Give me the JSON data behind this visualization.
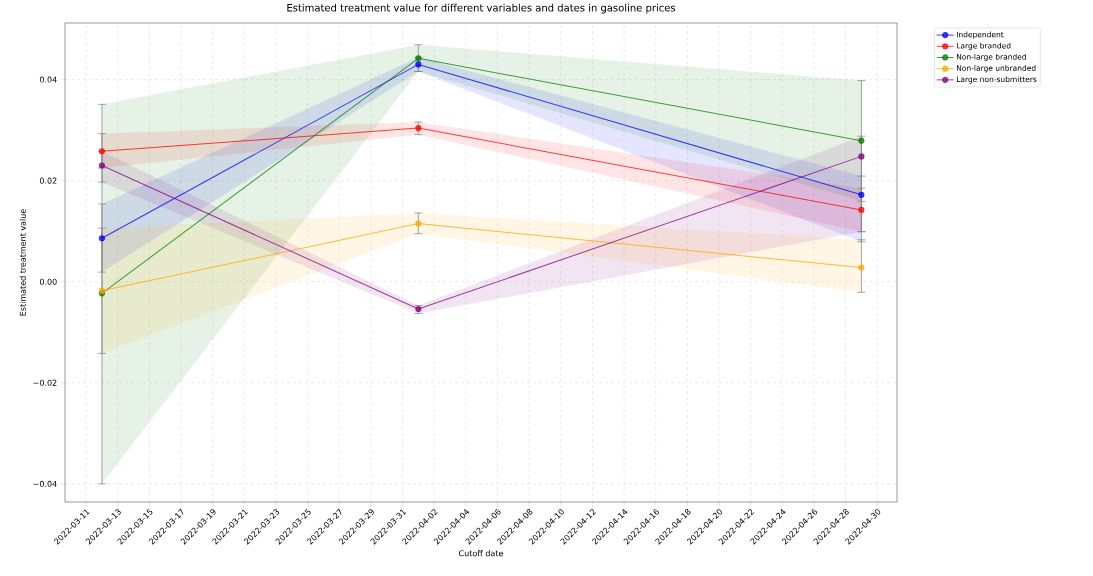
{
  "chart_data": {
    "type": "line",
    "title": "Estimated treatment value for different variables and dates in gasoline prices",
    "xlabel": "Cutoff date",
    "ylabel": "Estimated treatment value",
    "x": [
      "2022-03-12",
      "2022-04-01",
      "2022-04-29"
    ],
    "series": [
      {
        "name": "Independent",
        "color": "#0000ff",
        "values": [
          0.0086,
          0.043,
          0.0172
        ],
        "lower": [
          0.0019,
          0.0416,
          0.0079
        ],
        "upper": [
          0.0154,
          0.0444,
          0.0209
        ],
        "errors": [
          [
            0.0019,
            0.0154
          ],
          [
            0.0416,
            0.0444
          ],
          [
            0.0079,
            0.0209
          ]
        ]
      },
      {
        "name": "Large branded",
        "color": "#ff0000",
        "values": [
          0.0258,
          0.0304,
          0.0142
        ],
        "lower": [
          0.0225,
          0.0291,
          0.0099
        ],
        "upper": [
          0.0293,
          0.0316,
          0.0185
        ],
        "errors": [
          [
            0.0225,
            0.0293
          ],
          [
            0.0291,
            0.0316
          ],
          [
            0.0099,
            0.0185
          ]
        ]
      },
      {
        "name": "Non-large branded",
        "color": "#008000",
        "values": [
          -0.0023,
          0.0442,
          0.0279
        ],
        "lower": [
          -0.04,
          0.0416,
          0.0159
        ],
        "upper": [
          0.0351,
          0.0469,
          0.0398
        ],
        "errors": [
          [
            -0.04,
            0.0351
          ],
          [
            0.0416,
            0.0469
          ],
          [
            0.0159,
            0.0398
          ]
        ]
      },
      {
        "name": "Non-large unbranded",
        "color": "#ffa500",
        "values": [
          -0.0018,
          0.0115,
          0.0028
        ],
        "lower": [
          -0.0142,
          0.0095,
          -0.0021
        ],
        "upper": [
          0.0106,
          0.0136,
          0.0083
        ],
        "errors": [
          [
            -0.0142,
            0.0106
          ],
          [
            0.0095,
            0.0136
          ],
          [
            -0.0021,
            0.0083
          ]
        ]
      },
      {
        "name": "Large non-submitters",
        "color": "#800080",
        "values": [
          0.023,
          -0.0054,
          0.0248
        ],
        "lower": [
          0.0197,
          -0.0063,
          0.0099
        ],
        "upper": [
          0.0258,
          -0.0047,
          0.0288
        ],
        "errors": [
          [
            0.0197,
            0.0258
          ],
          [
            -0.0063,
            -0.0047
          ],
          [
            0.0099,
            0.0288
          ]
        ]
      }
    ],
    "xlim": [
      "2022-03-09T16:00",
      "2022-05-01T06:00"
    ],
    "ylim": [
      -0.0436,
      0.0512
    ],
    "xticks": [
      "2022-03-11",
      "2022-03-13",
      "2022-03-15",
      "2022-03-17",
      "2022-03-19",
      "2022-03-21",
      "2022-03-23",
      "2022-03-25",
      "2022-03-27",
      "2022-03-29",
      "2022-03-31",
      "2022-04-02",
      "2022-04-04",
      "2022-04-06",
      "2022-04-08",
      "2022-04-10",
      "2022-04-12",
      "2022-04-14",
      "2022-04-16",
      "2022-04-18",
      "2022-04-20",
      "2022-04-22",
      "2022-04-24",
      "2022-04-26",
      "2022-04-28",
      "2022-04-30"
    ],
    "yticks": [
      {
        "value": -0.04,
        "label": "−0.04"
      },
      {
        "value": -0.02,
        "label": "−0.02"
      },
      {
        "value": 0,
        "label": "0.00"
      },
      {
        "value": 0.02,
        "label": "0.02"
      },
      {
        "value": 0.04,
        "label": "0.04"
      }
    ],
    "grid": true,
    "legend": "top right",
    "marker": "circle",
    "line_style": "solid"
  }
}
